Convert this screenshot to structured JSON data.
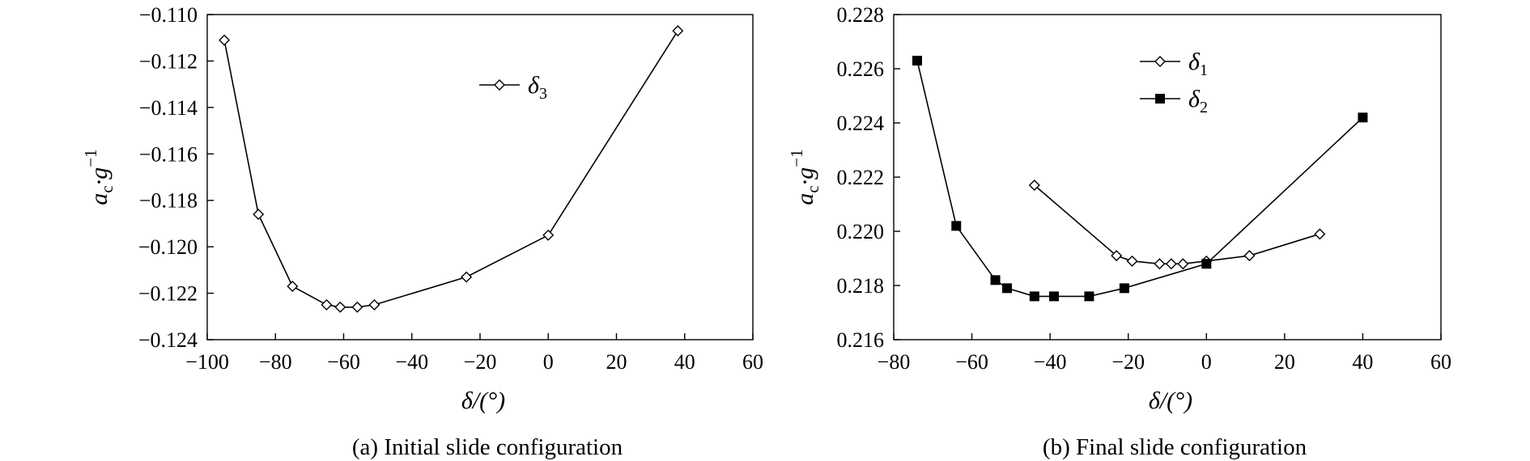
{
  "colors": {
    "line": "#000000",
    "background": "#ffffff"
  },
  "chart_data": [
    {
      "type": "line",
      "caption": "(a) Initial slide configuration",
      "xlabel": "δ/(°)",
      "ylabel": {
        "base": "a",
        "sub": "c",
        "mid": "·g",
        "sup": "−1"
      },
      "xlim": [
        -100,
        60
      ],
      "ylim": [
        -0.124,
        -0.11
      ],
      "xticks": [
        -100,
        -80,
        -60,
        -40,
        -20,
        0,
        20,
        40,
        60
      ],
      "xtick_labels": [
        "−100",
        "−80",
        "−60",
        "−40",
        "−20",
        "0",
        "20",
        "40",
        "60"
      ],
      "yticks": [
        -0.124,
        -0.122,
        -0.12,
        -0.118,
        -0.116,
        -0.114,
        -0.112,
        -0.11
      ],
      "ytick_labels": [
        "−0.124",
        "−0.122",
        "−0.120",
        "−0.118",
        "−0.116",
        "−0.114",
        "−0.112",
        "−0.110"
      ],
      "legend_position": "upper-right",
      "series": [
        {
          "name": "δ3",
          "label_base": "δ",
          "label_sub": "3",
          "marker": "diamond-open",
          "x": [
            -95,
            -85,
            -75,
            -65,
            -61,
            -56,
            -51,
            -24,
            0,
            38
          ],
          "y": [
            -0.1111,
            -0.1186,
            -0.1217,
            -0.1225,
            -0.1226,
            -0.1226,
            -0.1225,
            -0.1213,
            -0.1195,
            -0.1107
          ]
        }
      ]
    },
    {
      "type": "line",
      "caption": "(b) Final slide configuration",
      "xlabel": "δ/(°)",
      "ylabel": {
        "base": "a",
        "sub": "c",
        "mid": "·g",
        "sup": "−1"
      },
      "xlim": [
        -80,
        60
      ],
      "ylim": [
        0.216,
        0.228
      ],
      "xticks": [
        -80,
        -60,
        -40,
        -20,
        0,
        20,
        40,
        60
      ],
      "xtick_labels": [
        "−80",
        "−60",
        "−40",
        "−20",
        "0",
        "20",
        "40",
        "60"
      ],
      "yticks": [
        0.216,
        0.218,
        0.22,
        0.222,
        0.224,
        0.226,
        0.228
      ],
      "ytick_labels": [
        "0.216",
        "0.218",
        "0.220",
        "0.222",
        "0.224",
        "0.226",
        "0.228"
      ],
      "legend_position": "upper-center",
      "series": [
        {
          "name": "δ1",
          "label_base": "δ",
          "label_sub": "1",
          "marker": "diamond-open",
          "x": [
            -44,
            -23,
            -19,
            -12,
            -9,
            -6,
            0,
            11,
            29
          ],
          "y": [
            0.2217,
            0.2191,
            0.2189,
            0.2188,
            0.2188,
            0.2188,
            0.2189,
            0.2191,
            0.2199
          ]
        },
        {
          "name": "δ2",
          "label_base": "δ",
          "label_sub": "2",
          "marker": "square-filled",
          "x": [
            -74,
            -64,
            -54,
            -51,
            -44,
            -39,
            -30,
            -21,
            0,
            40
          ],
          "y": [
            0.2263,
            0.2202,
            0.2182,
            0.2179,
            0.2176,
            0.2176,
            0.2176,
            0.2179,
            0.2188,
            0.2242
          ]
        }
      ]
    }
  ]
}
